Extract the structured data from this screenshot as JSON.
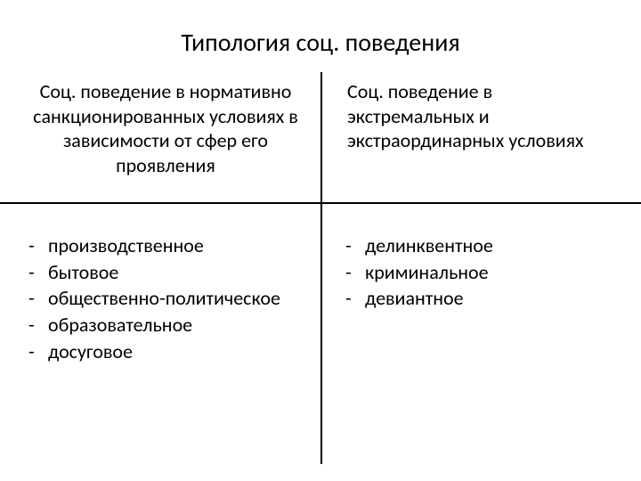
{
  "title": "Типология соц. поведения",
  "left": {
    "subtitle": "Соц. поведение в нормативно санкционированных условиях в зависимости от сфер его проявления",
    "items": [
      "производственное",
      "бытовое",
      "общественно-политическое",
      "образовательное",
      "досуговое"
    ]
  },
  "right": {
    "subtitle": "Соц. поведение в экстремальных и экстраординарных условиях",
    "items": [
      "делинквентное",
      "криминальное",
      "девиантное"
    ]
  },
  "colors": {
    "background": "#ffffff",
    "text": "#000000",
    "line": "#000000"
  },
  "typography": {
    "title_fontsize": 28,
    "subtitle_fontsize": 22,
    "item_fontsize": 22,
    "font_family": "Calibri"
  }
}
